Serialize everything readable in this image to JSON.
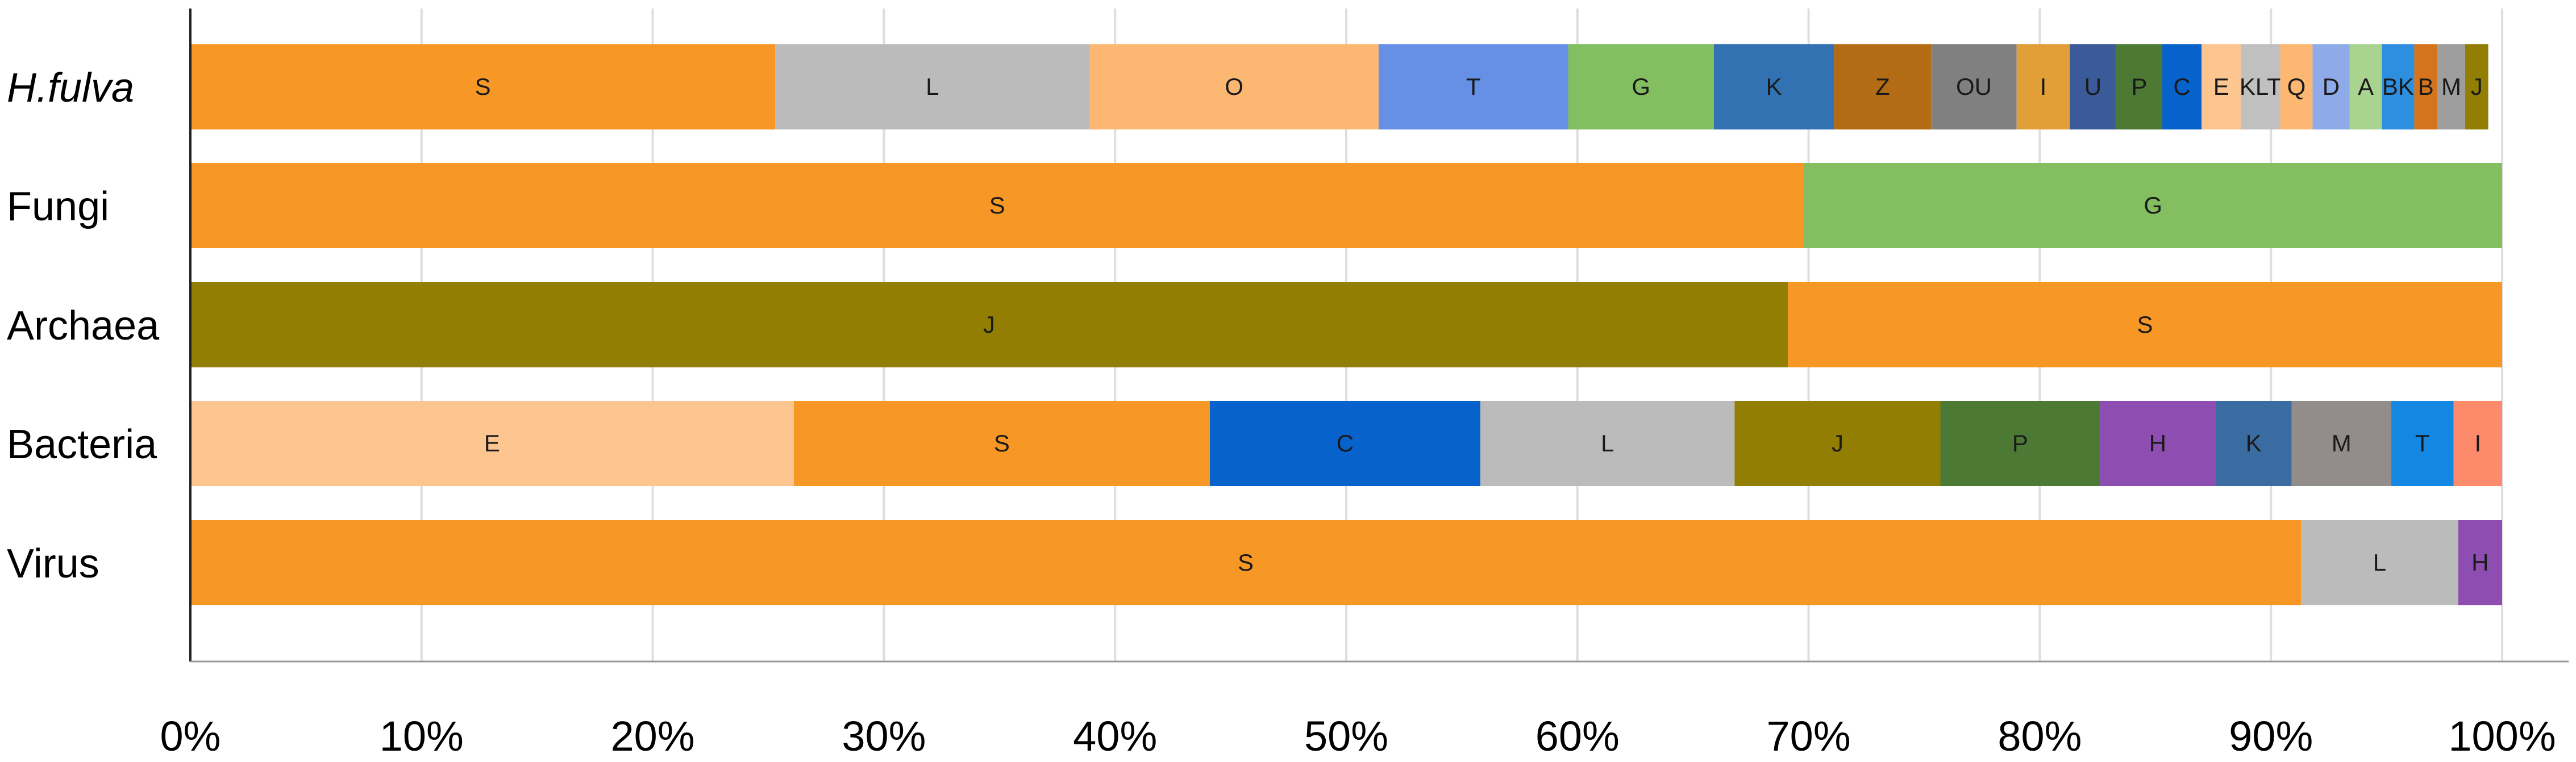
{
  "chart_data": {
    "type": "bar",
    "orientation": "horizontal",
    "stacked": true,
    "normalized": true,
    "title": "",
    "xlabel": "",
    "ylabel": "",
    "xlim": [
      0,
      100
    ],
    "x_ticks": [
      "0%",
      "10%",
      "20%",
      "30%",
      "40%",
      "50%",
      "60%",
      "70%",
      "80%",
      "90%",
      "100%"
    ],
    "grid": "vertical",
    "legend": "none",
    "categories": [
      {
        "label": "H.fulva",
        "italic": true
      },
      {
        "label": "Fungi",
        "italic": false
      },
      {
        "label": "Archaea",
        "italic": false
      },
      {
        "label": "Bacteria",
        "italic": false
      },
      {
        "label": "Virus",
        "italic": false
      }
    ],
    "rows": [
      {
        "category": "H.fulva",
        "segments": [
          {
            "label": "S",
            "value": 25.3,
            "color": "#F79726"
          },
          {
            "label": "L",
            "value": 13.6,
            "color": "#BBBBBB"
          },
          {
            "label": "O",
            "value": 12.5,
            "color": "#FCB772"
          },
          {
            "label": "T",
            "value": 8.2,
            "color": "#6590E6"
          },
          {
            "label": "G",
            "value": 6.3,
            "color": "#83BF61"
          },
          {
            "label": "K",
            "value": 5.2,
            "color": "#3372B2"
          },
          {
            "label": "Z",
            "value": 4.2,
            "color": "#B46C14"
          },
          {
            "label": "OU",
            "value": 3.7,
            "color": "#808080"
          },
          {
            "label": "I",
            "value": 2.3,
            "color": "#E29F38"
          },
          {
            "label": "U",
            "value": 2.0,
            "color": "#3A5A99"
          },
          {
            "label": "P",
            "value": 2.0,
            "color": "#4C7A35"
          },
          {
            "label": "C",
            "value": 1.7,
            "color": "#0762CB"
          },
          {
            "label": "E",
            "value": 1.7,
            "color": "#FDC58F"
          },
          {
            "label": "KLT",
            "value": 1.7,
            "color": "#C0C0C0"
          },
          {
            "label": "Q",
            "value": 1.4,
            "color": "#FCB772"
          },
          {
            "label": "D",
            "value": 1.6,
            "color": "#8FAAE8"
          },
          {
            "label": "A",
            "value": 1.4,
            "color": "#A9D48F"
          },
          {
            "label": "BK",
            "value": 1.4,
            "color": "#2E8FE0"
          },
          {
            "label": "B",
            "value": 1.0,
            "color": "#D5741C"
          },
          {
            "label": "M",
            "value": 1.2,
            "color": "#9E9E9E"
          },
          {
            "label": "J",
            "value": 1.0,
            "color": "#917E03"
          }
        ]
      },
      {
        "category": "Fungi",
        "segments": [
          {
            "label": "S",
            "value": 69.8,
            "color": "#F79726"
          },
          {
            "label": "G",
            "value": 30.2,
            "color": "#83BF61"
          }
        ]
      },
      {
        "category": "Archaea",
        "segments": [
          {
            "label": "J",
            "value": 69.1,
            "color": "#917E03"
          },
          {
            "label": "S",
            "value": 30.9,
            "color": "#F79726"
          }
        ]
      },
      {
        "category": "Bacteria",
        "segments": [
          {
            "label": "E",
            "value": 26.1,
            "color": "#FDC58F"
          },
          {
            "label": "S",
            "value": 18.0,
            "color": "#F79726"
          },
          {
            "label": "C",
            "value": 11.7,
            "color": "#0762CB"
          },
          {
            "label": "L",
            "value": 11.0,
            "color": "#BBBBBB"
          },
          {
            "label": "J",
            "value": 8.9,
            "color": "#917E03"
          },
          {
            "label": "P",
            "value": 6.9,
            "color": "#4C7A35"
          },
          {
            "label": "H",
            "value": 5.0,
            "color": "#8E4DB0"
          },
          {
            "label": "K",
            "value": 3.3,
            "color": "#3A6CA1"
          },
          {
            "label": "M",
            "value": 4.3,
            "color": "#928D8A"
          },
          {
            "label": "T",
            "value": 2.7,
            "color": "#1487E3"
          },
          {
            "label": "I",
            "value": 2.1,
            "color": "#FD8A6A"
          }
        ]
      },
      {
        "category": "Virus",
        "segments": [
          {
            "label": "S",
            "value": 91.3,
            "color": "#F79726"
          },
          {
            "label": "L",
            "value": 6.8,
            "color": "#BBBBBB"
          },
          {
            "label": "H",
            "value": 1.9,
            "color": "#8E4DB0"
          }
        ]
      }
    ]
  }
}
